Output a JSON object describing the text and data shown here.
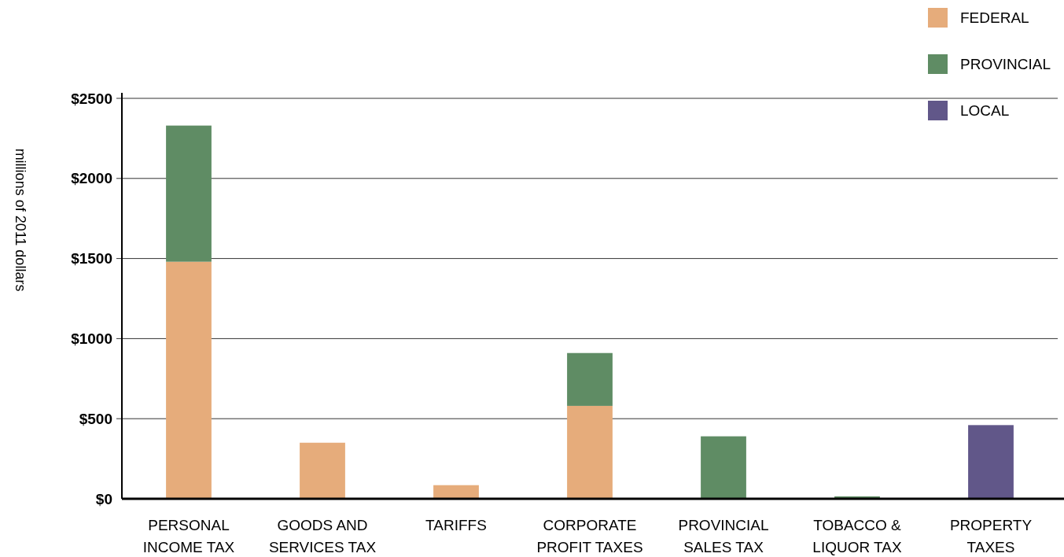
{
  "chart_data": {
    "type": "bar",
    "stacked": true,
    "ylabel": "millions of 2011 dollars",
    "categories": [
      "PERSONAL INCOME TAX",
      "GOODS AND SERVICES TAX",
      "TARIFFS",
      "CORPORATE PROFIT TAXES",
      "PROVINCIAL SALES TAX",
      "TOBACCO & LIQUOR TAX",
      "PROPERTY TAXES"
    ],
    "series": [
      {
        "name": "FEDERAL",
        "color": "#e6ac7b",
        "values": [
          1480,
          350,
          85,
          580,
          null,
          null,
          null
        ]
      },
      {
        "name": "PROVINCIAL",
        "color": "#5f8c64",
        "values": [
          850,
          null,
          null,
          330,
          390,
          15,
          null
        ]
      },
      {
        "name": "LOCAL",
        "color": "#615789",
        "values": [
          null,
          null,
          null,
          null,
          null,
          null,
          460
        ]
      }
    ],
    "ylim": [
      0,
      2500
    ],
    "yticks": [
      {
        "value": 0,
        "label": "$0"
      },
      {
        "value": 500,
        "label": "$500"
      },
      {
        "value": 1000,
        "label": "$1000"
      },
      {
        "value": 1500,
        "label": "$1500"
      },
      {
        "value": 2000,
        "label": "$2000"
      },
      {
        "value": 2500,
        "label": "$2500"
      }
    ],
    "grid": "y",
    "legend": "top right"
  }
}
